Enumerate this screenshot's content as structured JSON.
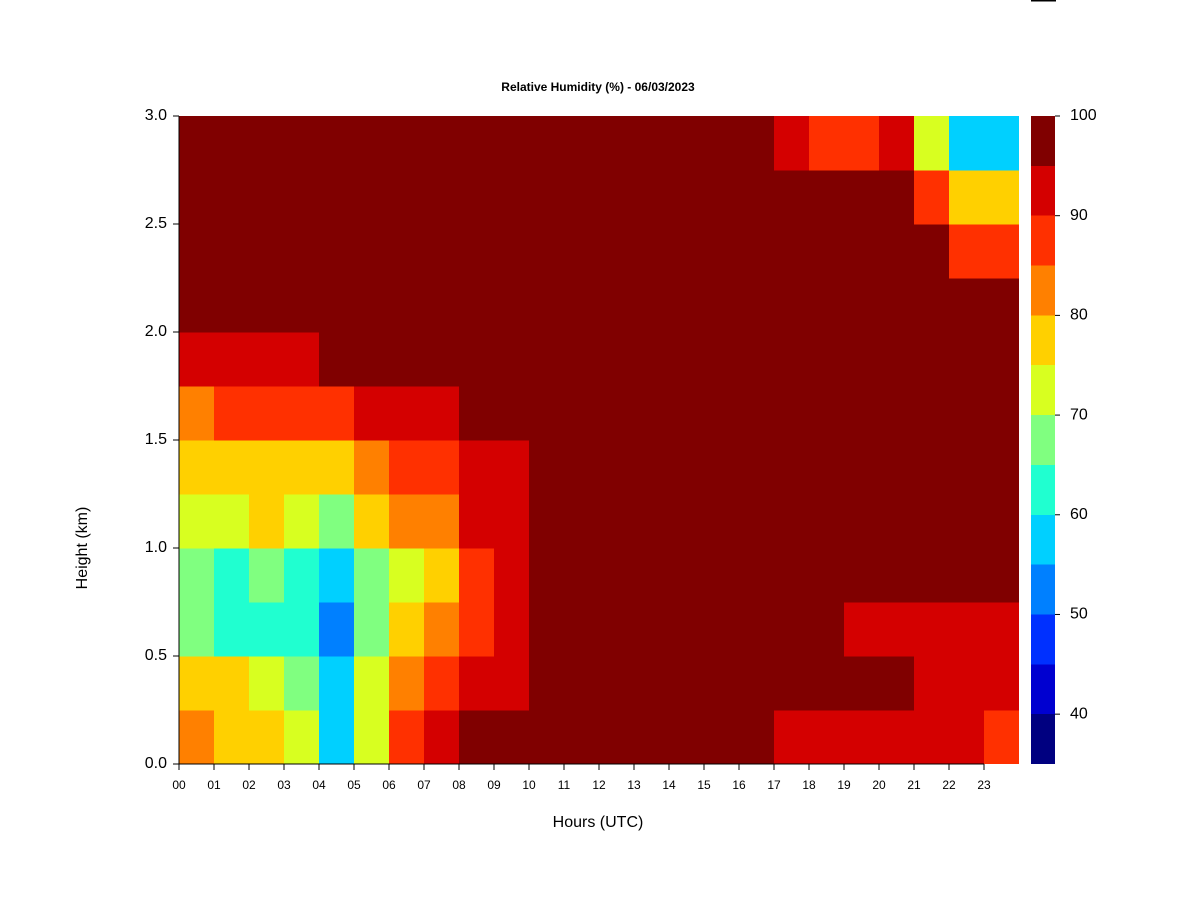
{
  "chart_data": {
    "type": "heatmap",
    "title": "Relative Humidity (%) - 06/03/2023",
    "xlabel": "Hours (UTC)",
    "ylabel": "Height (km)",
    "x": [
      0,
      1,
      2,
      3,
      4,
      5,
      6,
      7,
      8,
      9,
      10,
      11,
      12,
      13,
      14,
      15,
      16,
      17,
      18,
      19,
      20,
      21,
      22,
      23
    ],
    "y": [
      0,
      0.25,
      0.5,
      0.75,
      1,
      1.25,
      1.5,
      1.75,
      2,
      2.25,
      2.5,
      2.75
    ],
    "xlim": [
      0,
      24
    ],
    "ylim": [
      0,
      3
    ],
    "xticks": [
      {
        "value": 0,
        "label": "00"
      },
      {
        "value": 1,
        "label": "01"
      },
      {
        "value": 2,
        "label": "02"
      },
      {
        "value": 3,
        "label": "03"
      },
      {
        "value": 4,
        "label": "04"
      },
      {
        "value": 5,
        "label": "05"
      },
      {
        "value": 6,
        "label": "06"
      },
      {
        "value": 7,
        "label": "07"
      },
      {
        "value": 8,
        "label": "08"
      },
      {
        "value": 9,
        "label": "09"
      },
      {
        "value": 10,
        "label": "10"
      },
      {
        "value": 11,
        "label": "11"
      },
      {
        "value": 12,
        "label": "12"
      },
      {
        "value": 13,
        "label": "13"
      },
      {
        "value": 14,
        "label": "14"
      },
      {
        "value": 15,
        "label": "15"
      },
      {
        "value": 16,
        "label": "16"
      },
      {
        "value": 17,
        "label": "17"
      },
      {
        "value": 18,
        "label": "18"
      },
      {
        "value": 19,
        "label": "19"
      },
      {
        "value": 20,
        "label": "20"
      },
      {
        "value": 21,
        "label": "21"
      },
      {
        "value": 22,
        "label": "22"
      },
      {
        "value": 23,
        "label": "23"
      }
    ],
    "yticks": [
      {
        "value": 0,
        "label": "0.0"
      },
      0.5,
      {
        "value": 1,
        "label": "1.0"
      },
      1.5,
      {
        "value": 2,
        "label": "2.0"
      },
      2.5,
      {
        "value": 3,
        "label": "3.0"
      }
    ],
    "z": [
      [
        82,
        78,
        76,
        72,
        55,
        72,
        88,
        92,
        95,
        96,
        97,
        98,
        98,
        98,
        97,
        97,
        95,
        94,
        93,
        92,
        92,
        90,
        90,
        88
      ],
      [
        78,
        75,
        74,
        68,
        55,
        70,
        82,
        86,
        90,
        94,
        98,
        99,
        99,
        99,
        99,
        99,
        98,
        97,
        96,
        95,
        95,
        94,
        94,
        92
      ],
      [
        65,
        62,
        64,
        60,
        52,
        65,
        75,
        80,
        88,
        92,
        96,
        98,
        98,
        97,
        95,
        97,
        98,
        98,
        96,
        93,
        93,
        93,
        93,
        93
      ],
      [
        65,
        63,
        66,
        62,
        57,
        68,
        74,
        78,
        85,
        92,
        95,
        97,
        98,
        96,
        96,
        98,
        99,
        99,
        98,
        96,
        96,
        95,
        95,
        95
      ],
      [
        72,
        72,
        75,
        72,
        68,
        78,
        80,
        84,
        90,
        93,
        97,
        99,
        99,
        99,
        99,
        99,
        99,
        99,
        99,
        99,
        99,
        99,
        99,
        99
      ],
      [
        75,
        76,
        76,
        76,
        75,
        82,
        85,
        88,
        92,
        94,
        97,
        99,
        99,
        99,
        99,
        99,
        99,
        99,
        99,
        99,
        99,
        99,
        99,
        99
      ],
      [
        82,
        85,
        86,
        86,
        88,
        90,
        92,
        94,
        96,
        97,
        99,
        99,
        99,
        99,
        99,
        99,
        99,
        99,
        99,
        99,
        99,
        99,
        99,
        99
      ],
      [
        90,
        92,
        93,
        94,
        95,
        96,
        97,
        98,
        99,
        99,
        99,
        99,
        99,
        99,
        99,
        99,
        99,
        99,
        99,
        99,
        99,
        99,
        99,
        99
      ],
      [
        99,
        99,
        99,
        99,
        99,
        99,
        99,
        99,
        99,
        99,
        99,
        99,
        99,
        99,
        99,
        99,
        99,
        99,
        99,
        99,
        99,
        99,
        99,
        99
      ],
      [
        99,
        99,
        99,
        99,
        99,
        99,
        99,
        99,
        99,
        99,
        99,
        99,
        99,
        99,
        99,
        99,
        99,
        99,
        99,
        99,
        99,
        95,
        88,
        89
      ],
      [
        99,
        99,
        99,
        99,
        99,
        99,
        99,
        99,
        99,
        99,
        99,
        99,
        99,
        99,
        99,
        99,
        99,
        99,
        96,
        99,
        99,
        85,
        75,
        78
      ],
      [
        98,
        99,
        99,
        99,
        99,
        99,
        99,
        99,
        99,
        99,
        99,
        97,
        95,
        95,
        95,
        95,
        95,
        92,
        85,
        88,
        90,
        70,
        55,
        58
      ]
    ],
    "levels": [
      35,
      40,
      45,
      50,
      55,
      60,
      65,
      70,
      75,
      80,
      85,
      90,
      95,
      100
    ],
    "colors": [
      "#000080",
      "#0000d0",
      "#0030ff",
      "#0080ff",
      "#00d0ff",
      "#20ffd0",
      "#80ff80",
      "#d8ff20",
      "#ffd000",
      "#ff8000",
      "#ff3000",
      "#d40000",
      "#800000"
    ],
    "colorbar_ticks": [
      40,
      50,
      60,
      70,
      80,
      90,
      100
    ]
  }
}
